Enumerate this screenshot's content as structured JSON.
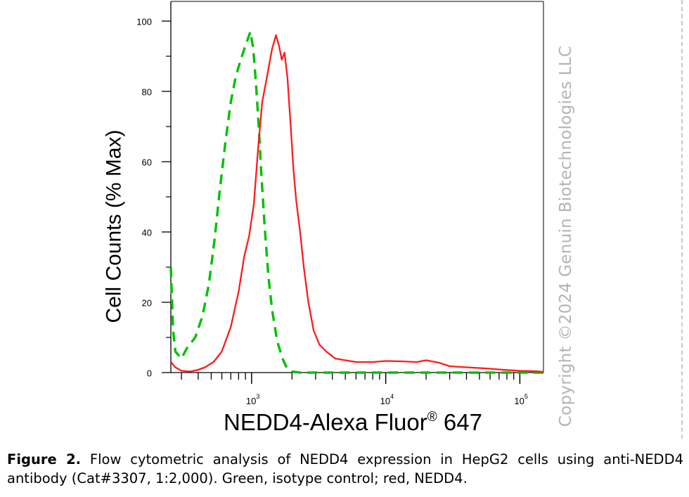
{
  "chart_data": {
    "type": "line",
    "xlabel": "NEDD4-Alexa Fluor",
    "xlabel_sup": "®",
    "xlabel_suffix": " 647",
    "ylabel": "Cell Counts (% Max)",
    "x_scale": "log",
    "xlim": [
      250,
      150000
    ],
    "ylim": [
      0,
      100
    ],
    "y_ticks": [
      0,
      20,
      40,
      60,
      80,
      100
    ],
    "x_tick_labels": [
      {
        "base": "10",
        "exp": "3",
        "value": 1000
      },
      {
        "base": "10",
        "exp": "4",
        "value": 10000
      },
      {
        "base": "10",
        "exp": "5",
        "value": 100000
      }
    ],
    "grid": false,
    "legend": "none",
    "series": [
      {
        "color": "#00c000",
        "dash": "dashed",
        "x": [
          250,
          260,
          270,
          300,
          330,
          380,
          430,
          480,
          530,
          580,
          640,
          700,
          760,
          830,
          900,
          980,
          1030,
          1080,
          1130,
          1180,
          1250,
          1330,
          1420,
          1550,
          1700,
          1850,
          2000,
          2300,
          2800,
          5000,
          10000,
          30000,
          150000
        ],
        "y": [
          30,
          12,
          6,
          4,
          7,
          10,
          16,
          25,
          38,
          52,
          66,
          77,
          84,
          89,
          93,
          97,
          92,
          82,
          70,
          57,
          42,
          28,
          18,
          9,
          4,
          1,
          0.3,
          0,
          0,
          0,
          0,
          0,
          0
        ]
      },
      {
        "color": "#ff1a1a",
        "dash": "solid",
        "x": [
          250,
          270,
          300,
          350,
          400,
          450,
          520,
          600,
          700,
          800,
          880,
          960,
          1040,
          1120,
          1200,
          1300,
          1420,
          1520,
          1600,
          1680,
          1760,
          1850,
          1950,
          2050,
          2150,
          2300,
          2450,
          2650,
          2900,
          3200,
          3600,
          4200,
          5000,
          6000,
          8000,
          10000,
          13000,
          17000,
          20000,
          25000,
          30000,
          40000,
          55000,
          75000,
          100000,
          130000,
          150000
        ],
        "y": [
          3,
          1.5,
          0.5,
          0.3,
          0.8,
          1.5,
          3,
          6,
          13,
          23,
          33,
          39,
          48,
          64,
          77,
          84,
          92,
          96,
          93,
          89,
          91,
          84,
          71,
          58,
          49,
          40,
          30,
          20,
          12,
          8,
          6,
          4,
          3.5,
          3,
          3,
          3.3,
          3.2,
          3,
          3.5,
          2.8,
          1.8,
          1.5,
          1.2,
          0.8,
          0.5,
          0.4,
          0.2
        ]
      }
    ]
  },
  "watermark": "Copyright ©2024 Genuin Biotechnologies LLC",
  "caption": {
    "figure_label": "Figure 2.",
    "text": "Flow cytometric analysis of NEDD4 expression in HepG2 cells using anti-NEDD4 antibody (Cat#3307, 1:2,000). Green, isotype control; red, NEDD4."
  }
}
